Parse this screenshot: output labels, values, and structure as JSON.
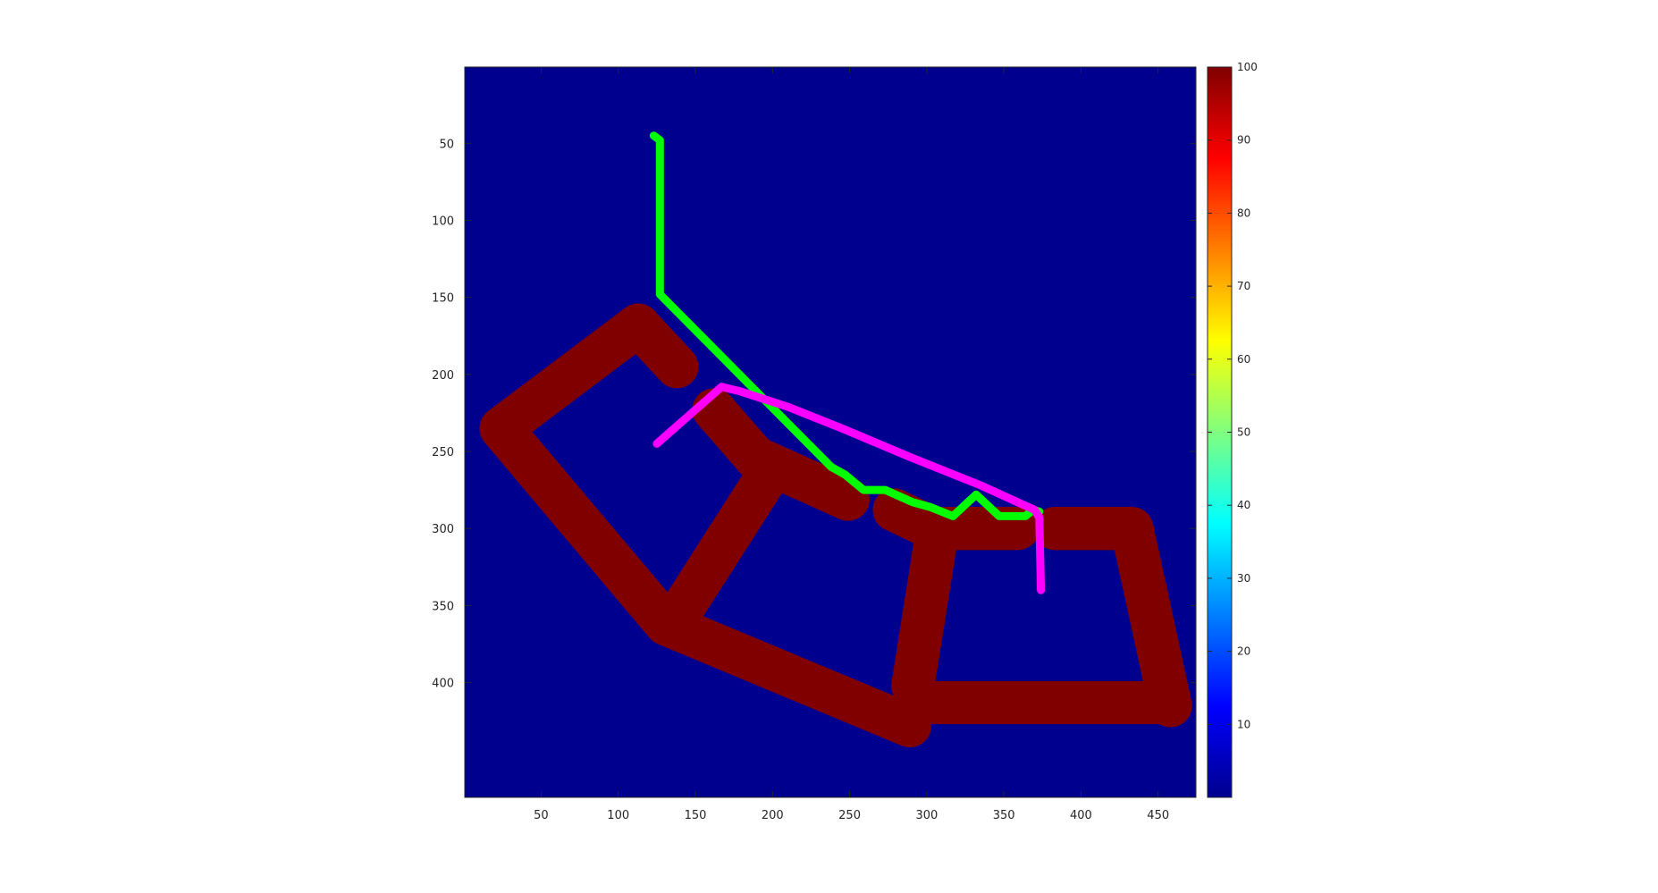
{
  "chart_data": {
    "type": "heatmap",
    "title": "",
    "xlabel": "",
    "ylabel": "",
    "xlim": [
      0.5,
      474.5
    ],
    "ylim": [
      0.5,
      474.5
    ],
    "y_reversed": true,
    "grid": false,
    "x_ticks": [
      50,
      100,
      150,
      200,
      250,
      300,
      350,
      400,
      450
    ],
    "y_ticks": [
      50,
      100,
      150,
      200,
      250,
      300,
      350,
      400
    ],
    "background_value": 0,
    "colormap": "jet",
    "colors": {
      "background": "#00008F",
      "obstacle": "#800000",
      "path_green": "#00FF00",
      "path_magenta": "#FF00FF"
    },
    "obstacle_value": 100,
    "obstacle_band_width": 28,
    "obstacles": [
      {
        "polyline": [
          [
            113,
            168
          ],
          [
            138,
            195
          ]
        ]
      },
      {
        "polyline": [
          [
            113,
            168
          ],
          [
            24,
            235
          ],
          [
            131,
            362
          ],
          [
            289,
            428
          ]
        ]
      },
      {
        "polyline": [
          [
            162,
            223
          ],
          [
            189,
            254
          ]
        ]
      },
      {
        "polyline": [
          [
            189,
            254
          ],
          [
            249,
            281
          ]
        ]
      },
      {
        "polyline": [
          [
            196,
            267
          ],
          [
            143,
            350
          ]
        ]
      },
      {
        "polyline": [
          [
            279,
            288
          ],
          [
            304,
            300
          ],
          [
            359,
            300
          ]
        ]
      },
      {
        "polyline": [
          [
            307,
            301
          ],
          [
            291,
            402
          ]
        ]
      },
      {
        "polyline": [
          [
            383,
            300
          ],
          [
            433,
            300
          ],
          [
            458,
            415
          ]
        ]
      },
      {
        "polyline": [
          [
            292,
            413
          ],
          [
            455,
            413
          ]
        ]
      }
    ],
    "colorbar": {
      "min": 0,
      "max": 100,
      "ticks": [
        10,
        20,
        30,
        40,
        50,
        60,
        70,
        80,
        90,
        100
      ]
    },
    "series": [
      {
        "color": "#00FF00",
        "points": [
          [
            123,
            45
          ],
          [
            127,
            48
          ],
          [
            127,
            148
          ],
          [
            238,
            260
          ],
          [
            247,
            265
          ],
          [
            259,
            275
          ],
          [
            273,
            275
          ],
          [
            291,
            283
          ],
          [
            302,
            286
          ],
          [
            317,
            292
          ],
          [
            332,
            278
          ],
          [
            347,
            292
          ],
          [
            364,
            292
          ],
          [
            369,
            288
          ],
          [
            373,
            289
          ]
        ]
      },
      {
        "color": "#FF00FF",
        "points": [
          [
            125,
            245
          ],
          [
            167,
            208
          ],
          [
            179,
            211
          ],
          [
            210,
            221
          ],
          [
            245,
            235
          ],
          [
            290,
            254
          ],
          [
            335,
            272
          ],
          [
            370,
            288
          ],
          [
            373,
            293
          ],
          [
            374,
            340
          ]
        ]
      }
    ]
  }
}
